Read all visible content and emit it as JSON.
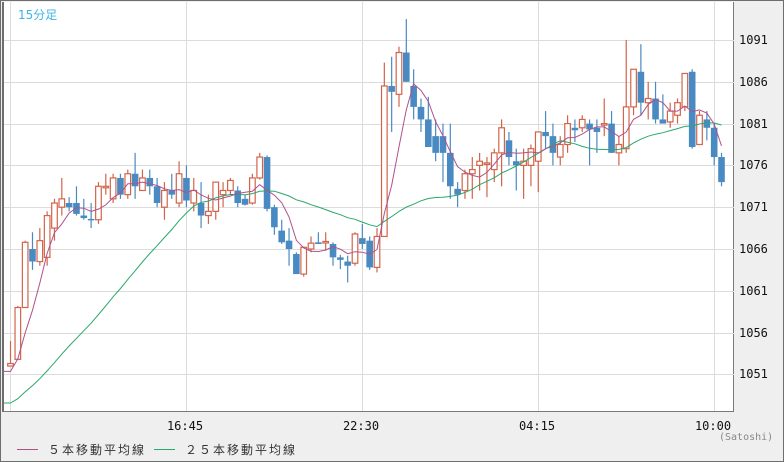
{
  "timeframe_label": "15分足",
  "unit_label": "(Satoshi)",
  "colors": {
    "up": "#d2644a",
    "down": "#4a8ac2",
    "ma5": "#b0508a",
    "ma25": "#2aa86a",
    "grid": "#dcdcdc",
    "timeframe": "#3cb4e6"
  },
  "legend": [
    {
      "label": "５本移動平均線",
      "color": "#b0508a"
    },
    {
      "label": "２５本移動平均線",
      "color": "#2aa86a"
    }
  ],
  "chart_data": {
    "type": "candlestick",
    "title": "15分足",
    "xlabel": "",
    "ylabel": "(Satoshi)",
    "ylim": [
      1046.5,
      1095.5
    ],
    "y_ticks": [
      1091,
      1086,
      1081,
      1076,
      1071,
      1066,
      1061,
      1056,
      1051
    ],
    "x_ticks": [
      {
        "label": "16:45",
        "index": 24
      },
      {
        "label": "22:30",
        "index": 47
      },
      {
        "label": "04:15",
        "index": 71
      },
      {
        "label": "10:00",
        "index": 95
      }
    ],
    "grid": true,
    "legend_position": "bottom-left",
    "candles": [
      {
        "o": 1052.0,
        "h": 1055.0,
        "l": 1052.0,
        "c": 1052.3
      },
      {
        "o": 1052.8,
        "h": 1059.2,
        "l": 1052.8,
        "c": 1059.0
      },
      {
        "o": 1059.0,
        "h": 1067.0,
        "l": 1059.0,
        "c": 1066.8
      },
      {
        "o": 1066.0,
        "h": 1068.0,
        "l": 1063.5,
        "c": 1064.5
      },
      {
        "o": 1064.5,
        "h": 1068.5,
        "l": 1064.0,
        "c": 1067.0
      },
      {
        "o": 1065.0,
        "h": 1070.5,
        "l": 1064.0,
        "c": 1070.0
      },
      {
        "o": 1068.5,
        "h": 1072.0,
        "l": 1067.0,
        "c": 1071.5
      },
      {
        "o": 1071.0,
        "h": 1074.5,
        "l": 1070.0,
        "c": 1072.0
      },
      {
        "o": 1071.5,
        "h": 1072.2,
        "l": 1070.5,
        "c": 1071.0
      },
      {
        "o": 1071.5,
        "h": 1073.5,
        "l": 1070.0,
        "c": 1070.2
      },
      {
        "o": 1070.0,
        "h": 1072.0,
        "l": 1069.5,
        "c": 1069.7
      },
      {
        "o": 1069.6,
        "h": 1071.5,
        "l": 1068.5,
        "c": 1069.5
      },
      {
        "o": 1069.5,
        "h": 1074.0,
        "l": 1069.0,
        "c": 1073.5
      },
      {
        "o": 1073.5,
        "h": 1075.0,
        "l": 1072.5,
        "c": 1073.5
      },
      {
        "o": 1072.0,
        "h": 1075.0,
        "l": 1071.5,
        "c": 1074.5
      },
      {
        "o": 1074.5,
        "h": 1075.0,
        "l": 1072.0,
        "c": 1072.5
      },
      {
        "o": 1072.5,
        "h": 1075.5,
        "l": 1072.0,
        "c": 1075.0
      },
      {
        "o": 1075.0,
        "h": 1077.5,
        "l": 1072.0,
        "c": 1073.5
      },
      {
        "o": 1073.0,
        "h": 1075.5,
        "l": 1073.0,
        "c": 1074.5
      },
      {
        "o": 1074.5,
        "h": 1075.5,
        "l": 1072.5,
        "c": 1073.5
      },
      {
        "o": 1073.5,
        "h": 1074.5,
        "l": 1071.0,
        "c": 1071.5
      },
      {
        "o": 1071.0,
        "h": 1074.0,
        "l": 1069.5,
        "c": 1073.0
      },
      {
        "o": 1073.0,
        "h": 1075.0,
        "l": 1072.0,
        "c": 1072.5
      },
      {
        "o": 1071.5,
        "h": 1076.5,
        "l": 1071.0,
        "c": 1075.0
      },
      {
        "o": 1074.5,
        "h": 1076.0,
        "l": 1071.0,
        "c": 1071.8
      },
      {
        "o": 1071.5,
        "h": 1074.5,
        "l": 1070.5,
        "c": 1073.0
      },
      {
        "o": 1071.5,
        "h": 1074.0,
        "l": 1068.5,
        "c": 1070.0
      },
      {
        "o": 1070.0,
        "h": 1072.5,
        "l": 1069.0,
        "c": 1070.5
      },
      {
        "o": 1070.5,
        "h": 1074.0,
        "l": 1069.5,
        "c": 1074.0
      },
      {
        "o": 1072.5,
        "h": 1074.0,
        "l": 1071.0,
        "c": 1073.0
      },
      {
        "o": 1073.0,
        "h": 1074.5,
        "l": 1072.5,
        "c": 1074.2
      },
      {
        "o": 1073.0,
        "h": 1073.5,
        "l": 1071.0,
        "c": 1071.5
      },
      {
        "o": 1072.0,
        "h": 1072.5,
        "l": 1071.2,
        "c": 1071.3
      },
      {
        "o": 1071.5,
        "h": 1075.0,
        "l": 1071.3,
        "c": 1074.5
      },
      {
        "o": 1074.5,
        "h": 1077.5,
        "l": 1074.3,
        "c": 1077.0
      },
      {
        "o": 1077.0,
        "h": 1077.2,
        "l": 1070.5,
        "c": 1070.8
      },
      {
        "o": 1071.0,
        "h": 1071.3,
        "l": 1067.7,
        "c": 1068.6
      },
      {
        "o": 1068.2,
        "h": 1069.5,
        "l": 1066.6,
        "c": 1066.8
      },
      {
        "o": 1067.0,
        "h": 1068.5,
        "l": 1064.0,
        "c": 1066.0
      },
      {
        "o": 1065.4,
        "h": 1065.6,
        "l": 1063.2,
        "c": 1063.0
      },
      {
        "o": 1063.0,
        "h": 1066.3,
        "l": 1062.7,
        "c": 1066.2
      },
      {
        "o": 1066.0,
        "h": 1067.5,
        "l": 1065.6,
        "c": 1066.7
      },
      {
        "o": 1066.8,
        "h": 1068.0,
        "l": 1066.6,
        "c": 1066.6
      },
      {
        "o": 1066.8,
        "h": 1068.0,
        "l": 1065.8,
        "c": 1066.9
      },
      {
        "o": 1066.6,
        "h": 1066.8,
        "l": 1064.0,
        "c": 1065.0
      },
      {
        "o": 1065.0,
        "h": 1065.3,
        "l": 1063.6,
        "c": 1064.7
      },
      {
        "o": 1064.5,
        "h": 1065.2,
        "l": 1062.0,
        "c": 1064.0
      },
      {
        "o": 1064.3,
        "h": 1068.0,
        "l": 1064.0,
        "c": 1067.8
      },
      {
        "o": 1067.3,
        "h": 1069.0,
        "l": 1066.0,
        "c": 1066.6
      },
      {
        "o": 1067.0,
        "h": 1067.5,
        "l": 1063.5,
        "c": 1063.8
      },
      {
        "o": 1063.8,
        "h": 1068.5,
        "l": 1063.2,
        "c": 1067.5
      },
      {
        "o": 1067.5,
        "h": 1088.3,
        "l": 1067.5,
        "c": 1085.5
      },
      {
        "o": 1085.5,
        "h": 1089.0,
        "l": 1080.0,
        "c": 1084.8
      },
      {
        "o": 1084.5,
        "h": 1090.2,
        "l": 1083.0,
        "c": 1089.5
      },
      {
        "o": 1089.5,
        "h": 1093.5,
        "l": 1086.0,
        "c": 1086.0
      },
      {
        "o": 1085.5,
        "h": 1087.5,
        "l": 1081.5,
        "c": 1083.0
      },
      {
        "o": 1083.0,
        "h": 1084.0,
        "l": 1080.0,
        "c": 1081.5
      },
      {
        "o": 1081.5,
        "h": 1084.2,
        "l": 1078.5,
        "c": 1078.2
      },
      {
        "o": 1079.5,
        "h": 1081.5,
        "l": 1076.5,
        "c": 1077.5
      },
      {
        "o": 1079.5,
        "h": 1081.0,
        "l": 1074.0,
        "c": 1077.5
      },
      {
        "o": 1077.5,
        "h": 1081.0,
        "l": 1072.0,
        "c": 1073.5
      },
      {
        "o": 1073.2,
        "h": 1074.0,
        "l": 1071.0,
        "c": 1072.5
      },
      {
        "o": 1073.0,
        "h": 1075.5,
        "l": 1072.0,
        "c": 1075.0
      },
      {
        "o": 1075.0,
        "h": 1077.0,
        "l": 1072.0,
        "c": 1075.5
      },
      {
        "o": 1076.0,
        "h": 1077.5,
        "l": 1073.0,
        "c": 1076.5
      },
      {
        "o": 1076.2,
        "h": 1077.0,
        "l": 1072.2,
        "c": 1076.3
      },
      {
        "o": 1075.5,
        "h": 1078.0,
        "l": 1074.0,
        "c": 1077.5
      },
      {
        "o": 1077.5,
        "h": 1081.5,
        "l": 1073.5,
        "c": 1080.5
      },
      {
        "o": 1079.0,
        "h": 1080.0,
        "l": 1076.0,
        "c": 1077.0
      },
      {
        "o": 1076.5,
        "h": 1078.0,
        "l": 1073.0,
        "c": 1076.0
      },
      {
        "o": 1076.0,
        "h": 1078.0,
        "l": 1072.0,
        "c": 1076.5
      },
      {
        "o": 1076.0,
        "h": 1078.5,
        "l": 1073.5,
        "c": 1078.0
      },
      {
        "o": 1076.5,
        "h": 1080.0,
        "l": 1072.8,
        "c": 1080.0
      },
      {
        "o": 1080.0,
        "h": 1082.5,
        "l": 1078.0,
        "c": 1079.5
      },
      {
        "o": 1079.5,
        "h": 1081.0,
        "l": 1076.0,
        "c": 1077.5
      },
      {
        "o": 1077.0,
        "h": 1079.5,
        "l": 1076.0,
        "c": 1078.5
      },
      {
        "o": 1078.5,
        "h": 1082.0,
        "l": 1077.5,
        "c": 1081.0
      },
      {
        "o": 1080.5,
        "h": 1081.5,
        "l": 1078.8,
        "c": 1080.2
      },
      {
        "o": 1080.5,
        "h": 1082.0,
        "l": 1080.0,
        "c": 1081.5
      },
      {
        "o": 1081.0,
        "h": 1081.5,
        "l": 1076.0,
        "c": 1080.3
      },
      {
        "o": 1080.5,
        "h": 1081.5,
        "l": 1077.5,
        "c": 1080.0
      },
      {
        "o": 1081.0,
        "h": 1084.0,
        "l": 1079.5,
        "c": 1081.0
      },
      {
        "o": 1081.0,
        "h": 1082.5,
        "l": 1077.5,
        "c": 1077.5
      },
      {
        "o": 1077.5,
        "h": 1079.5,
        "l": 1076.0,
        "c": 1078.5
      },
      {
        "o": 1078.0,
        "h": 1091.0,
        "l": 1077.5,
        "c": 1083.0
      },
      {
        "o": 1083.0,
        "h": 1087.5,
        "l": 1082.0,
        "c": 1087.5
      },
      {
        "o": 1087.2,
        "h": 1090.5,
        "l": 1082.0,
        "c": 1083.5
      },
      {
        "o": 1083.5,
        "h": 1086.0,
        "l": 1081.5,
        "c": 1084.0
      },
      {
        "o": 1084.0,
        "h": 1086.0,
        "l": 1081.0,
        "c": 1081.5
      },
      {
        "o": 1081.5,
        "h": 1084.5,
        "l": 1081.5,
        "c": 1081.0
      },
      {
        "o": 1081.2,
        "h": 1083.5,
        "l": 1080.5,
        "c": 1082.5
      },
      {
        "o": 1082.0,
        "h": 1084.0,
        "l": 1081.0,
        "c": 1083.5
      },
      {
        "o": 1083.0,
        "h": 1086.5,
        "l": 1082.5,
        "c": 1087.0
      },
      {
        "o": 1087.2,
        "h": 1087.5,
        "l": 1078.0,
        "c": 1078.2
      },
      {
        "o": 1078.5,
        "h": 1082.5,
        "l": 1078.5,
        "c": 1082.0
      },
      {
        "o": 1081.5,
        "h": 1082.5,
        "l": 1079.0,
        "c": 1080.5
      },
      {
        "o": 1080.5,
        "h": 1081.0,
        "l": 1076.0,
        "c": 1077.0
      },
      {
        "o": 1077.0,
        "h": 1077.5,
        "l": 1073.5,
        "c": 1074.0
      }
    ],
    "series": [
      {
        "name": "５本移動平均線",
        "color": "#b0508a"
      },
      {
        "name": "２５本移動平均線",
        "color": "#2aa86a"
      }
    ]
  }
}
